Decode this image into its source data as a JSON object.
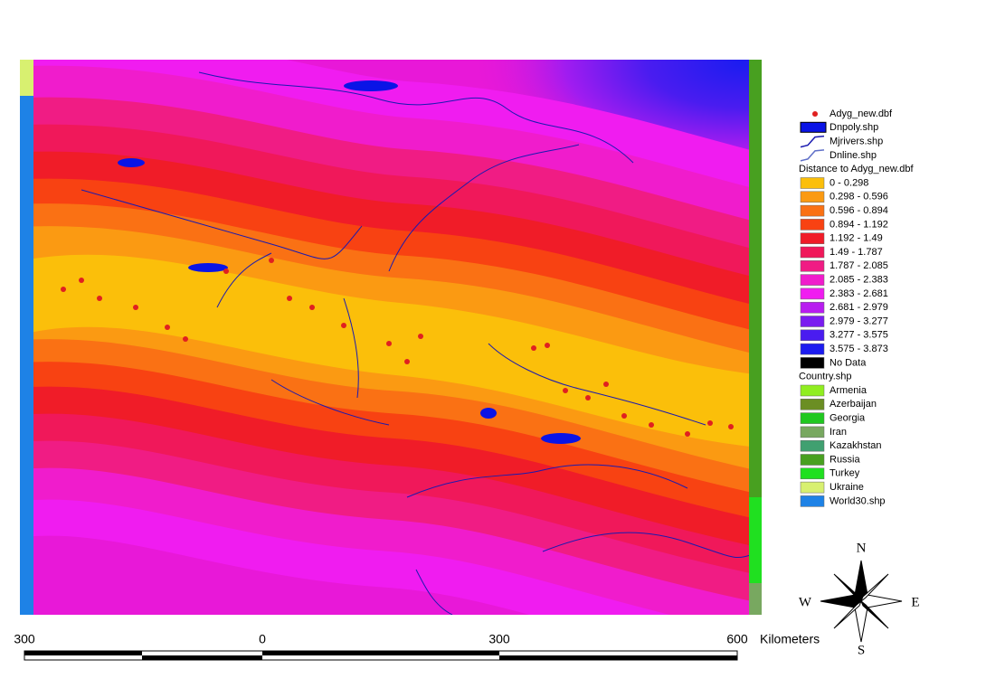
{
  "legend": {
    "layers": [
      {
        "label": "Adyg_new.dbf",
        "symbol": "point",
        "color": "#e02020"
      },
      {
        "label": "Dnpoly.shp",
        "symbol": "polygon",
        "color": "#0a14e6"
      },
      {
        "label": "Mjrivers.shp",
        "symbol": "line",
        "color": "#1a1ab0"
      },
      {
        "label": "Dnline.shp",
        "symbol": "line",
        "color": "#6070c8"
      }
    ],
    "distance": {
      "heading": "Distance to Adyg_new.dbf",
      "classes": [
        {
          "label": "0 - 0.298",
          "color": "#fbbf0a"
        },
        {
          "label": "0.298 - 0.596",
          "color": "#fb9a12"
        },
        {
          "label": "0.596 - 0.894",
          "color": "#fa7114"
        },
        {
          "label": "0.894 - 1.192",
          "color": "#f84212"
        },
        {
          "label": "1.192 - 1.49",
          "color": "#f01c28"
        },
        {
          "label": "1.49 - 1.787",
          "color": "#f0185a"
        },
        {
          "label": "1.787 - 2.085",
          "color": "#f01c84"
        },
        {
          "label": "2.085 - 2.383",
          "color": "#f01ccc"
        },
        {
          "label": "2.383 - 2.681",
          "color": "#f01cf0"
        },
        {
          "label": "2.681 - 2.979",
          "color": "#b81cf0"
        },
        {
          "label": "2.979 - 3.277",
          "color": "#7a1cf0"
        },
        {
          "label": "3.277 - 3.575",
          "color": "#4a1cf0"
        },
        {
          "label": "3.575 - 3.873",
          "color": "#1c1cf0"
        },
        {
          "label": "No Data",
          "color": "#000000"
        }
      ]
    },
    "country": {
      "heading": "Country.shp",
      "classes": [
        {
          "label": "Armenia",
          "color": "#90ee20"
        },
        {
          "label": "Azerbaijan",
          "color": "#6b8e23"
        },
        {
          "label": "Georgia",
          "color": "#20c820"
        },
        {
          "label": "Iran",
          "color": "#78a860"
        },
        {
          "label": "Kazakhstan",
          "color": "#40a070"
        },
        {
          "label": "Russia",
          "color": "#48a020"
        },
        {
          "label": "Turkey",
          "color": "#20e020"
        },
        {
          "label": "Ukraine",
          "color": "#d8f070"
        },
        {
          "label": "World30.shp",
          "color": "#1e82e6"
        }
      ]
    }
  },
  "scale_bar": {
    "labels": [
      "300",
      "0",
      "300",
      "600"
    ],
    "unit": "Kilometers"
  },
  "compass": {
    "north": "N",
    "east": "E",
    "south": "S",
    "west": "W"
  }
}
